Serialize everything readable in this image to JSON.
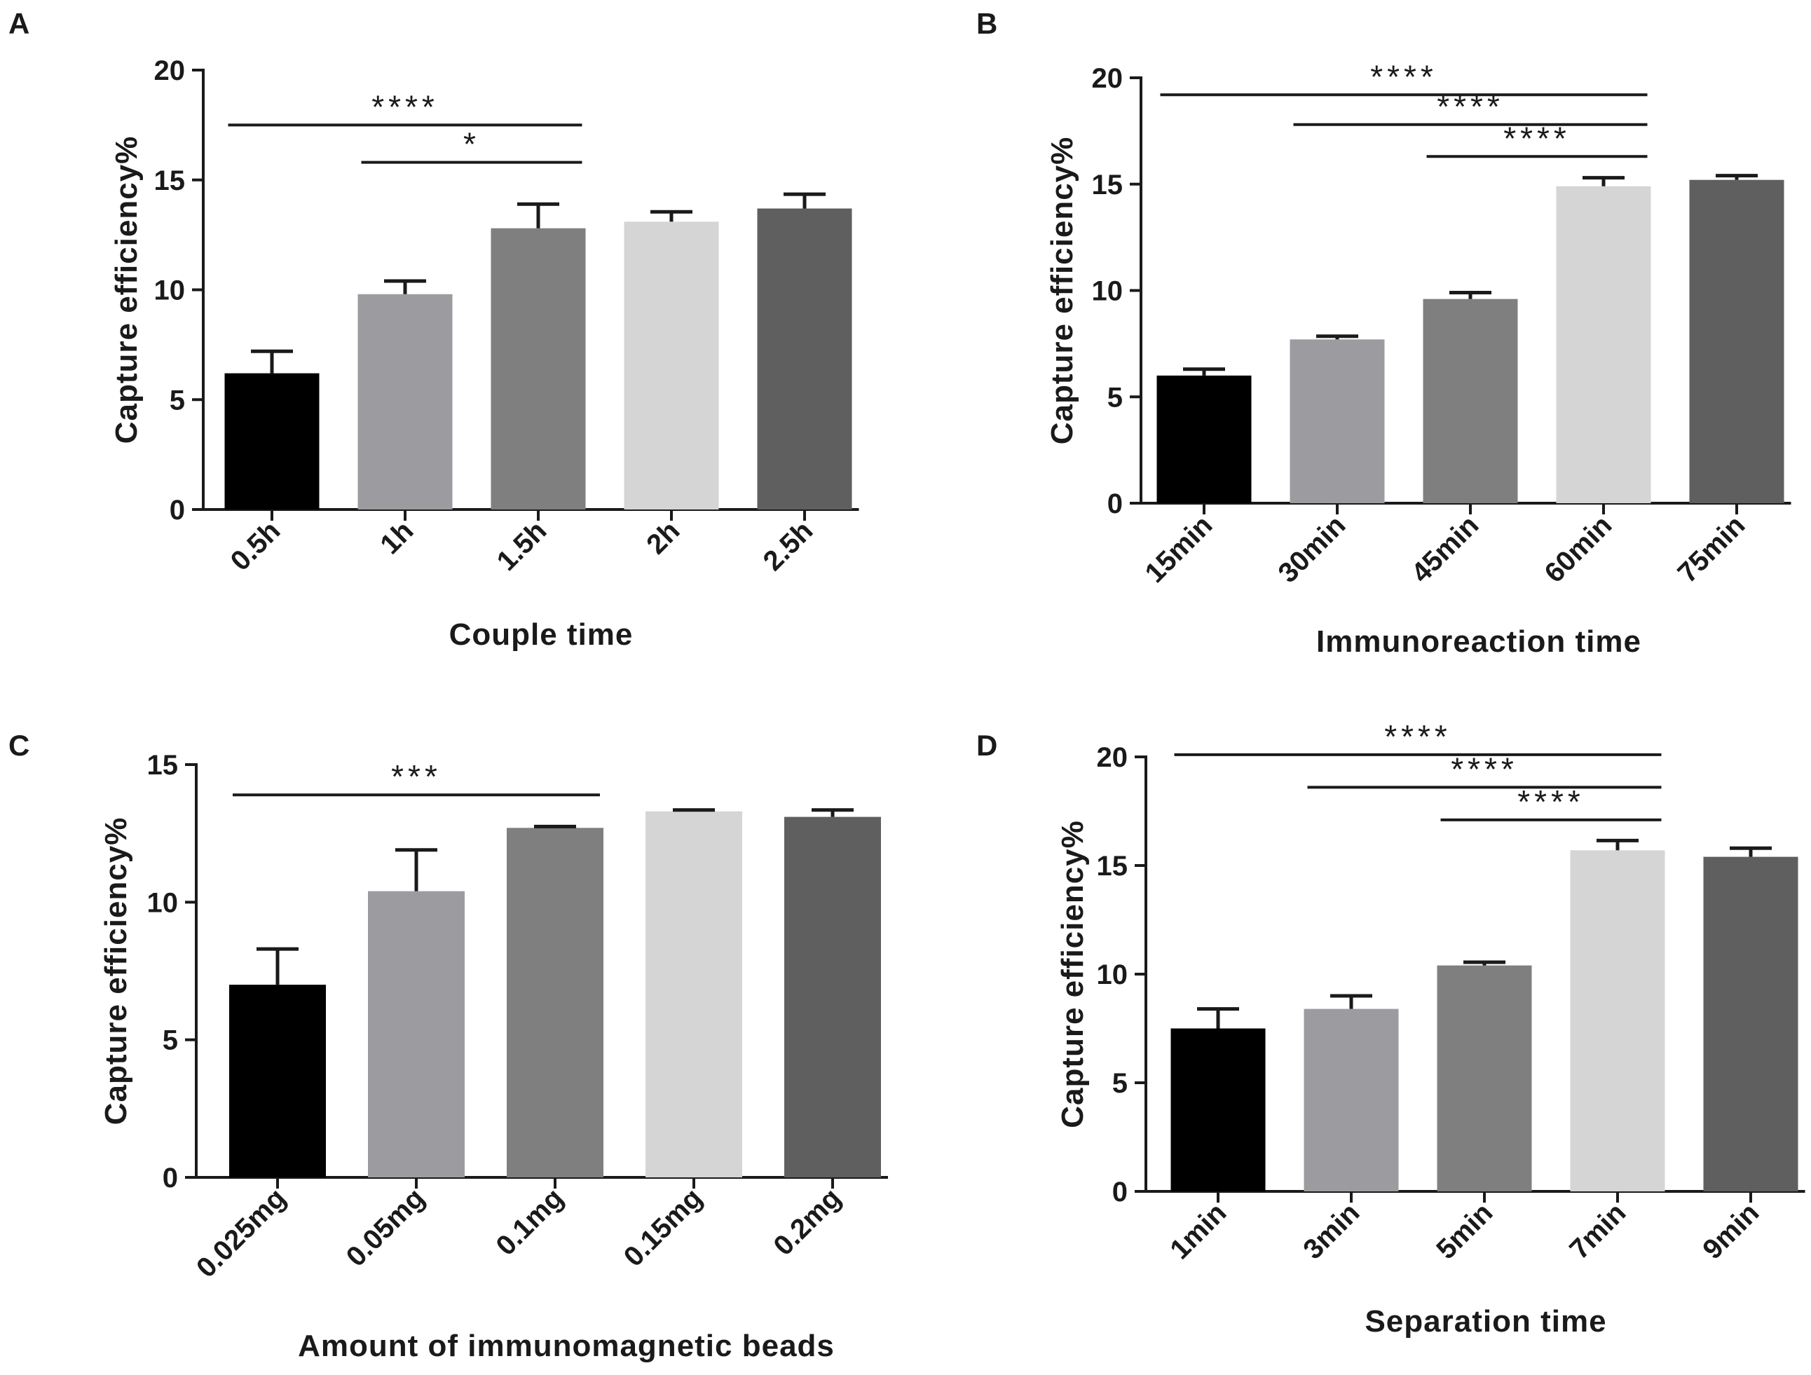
{
  "chart_data": [
    {
      "panel": "A",
      "type": "bar",
      "categories": [
        "0.5h",
        "1h",
        "1.5h",
        "2h",
        "2.5h"
      ],
      "values": [
        6.2,
        9.8,
        12.8,
        13.1,
        13.7
      ],
      "errors": [
        1.0,
        0.6,
        1.1,
        0.45,
        0.65
      ],
      "colors": [
        "#000000",
        "#9c9ca0",
        "#7f7f7f",
        "#d5d5d5",
        "#5f5f5f"
      ],
      "xlabel": "Couple time",
      "ylabel": "Capture efficiency%",
      "ylim": [
        0,
        20
      ],
      "yticks": [
        0,
        5,
        10,
        15,
        20
      ],
      "significance": [
        {
          "from": 0,
          "to": 2,
          "label": "****",
          "y": 17.5
        },
        {
          "from": 1,
          "to": 2,
          "label": "*",
          "y": 15.8
        }
      ]
    },
    {
      "panel": "B",
      "type": "bar",
      "categories": [
        "15min",
        "30min",
        "45min",
        "60min",
        "75min"
      ],
      "values": [
        6.0,
        7.7,
        9.6,
        14.9,
        15.2
      ],
      "errors": [
        0.3,
        0.15,
        0.3,
        0.4,
        0.2
      ],
      "colors": [
        "#000000",
        "#9c9ca0",
        "#7f7f7f",
        "#d5d5d5",
        "#5f5f5f"
      ],
      "xlabel": "Immunoreaction time",
      "ylabel": "Capture efficiency%",
      "ylim": [
        0,
        20
      ],
      "yticks": [
        0,
        5,
        10,
        15,
        20
      ],
      "significance": [
        {
          "from": 0,
          "to": 3,
          "label": "****",
          "y": 19.2
        },
        {
          "from": 1,
          "to": 3,
          "label": "****",
          "y": 17.8
        },
        {
          "from": 2,
          "to": 3,
          "label": "****",
          "y": 16.3
        }
      ]
    },
    {
      "panel": "C",
      "type": "bar",
      "categories": [
        "0.025mg",
        "0.05mg",
        "0.1mg",
        "0.15mg",
        "0.2mg"
      ],
      "values": [
        7.0,
        10.4,
        12.7,
        13.3,
        13.1
      ],
      "errors": [
        1.3,
        1.5,
        0.05,
        0.05,
        0.25
      ],
      "colors": [
        "#000000",
        "#9c9ca0",
        "#7f7f7f",
        "#d5d5d5",
        "#5f5f5f"
      ],
      "xlabel": "Amount of immunomagnetic beads",
      "ylabel": "Capture efficiency%",
      "ylim": [
        0,
        15
      ],
      "yticks": [
        0,
        5,
        10,
        15
      ],
      "significance": [
        {
          "from": 0,
          "to": 2,
          "label": "***",
          "y": 13.9
        }
      ]
    },
    {
      "panel": "D",
      "type": "bar",
      "categories": [
        "1min",
        "3min",
        "5min",
        "7min",
        "9min"
      ],
      "values": [
        7.5,
        8.4,
        10.4,
        15.7,
        15.4
      ],
      "errors": [
        0.9,
        0.6,
        0.15,
        0.45,
        0.4
      ],
      "colors": [
        "#000000",
        "#9c9ca0",
        "#7f7f7f",
        "#d5d5d5",
        "#5f5f5f"
      ],
      "xlabel": "Separation time",
      "ylabel": "Capture efficiency%",
      "ylim": [
        0,
        20
      ],
      "yticks": [
        0,
        5,
        10,
        15,
        20
      ],
      "significance": [
        {
          "from": 0,
          "to": 3,
          "label": "****",
          "y": 20.1
        },
        {
          "from": 1,
          "to": 3,
          "label": "****",
          "y": 18.6
        },
        {
          "from": 2,
          "to": 3,
          "label": "****",
          "y": 17.1
        }
      ]
    }
  ]
}
